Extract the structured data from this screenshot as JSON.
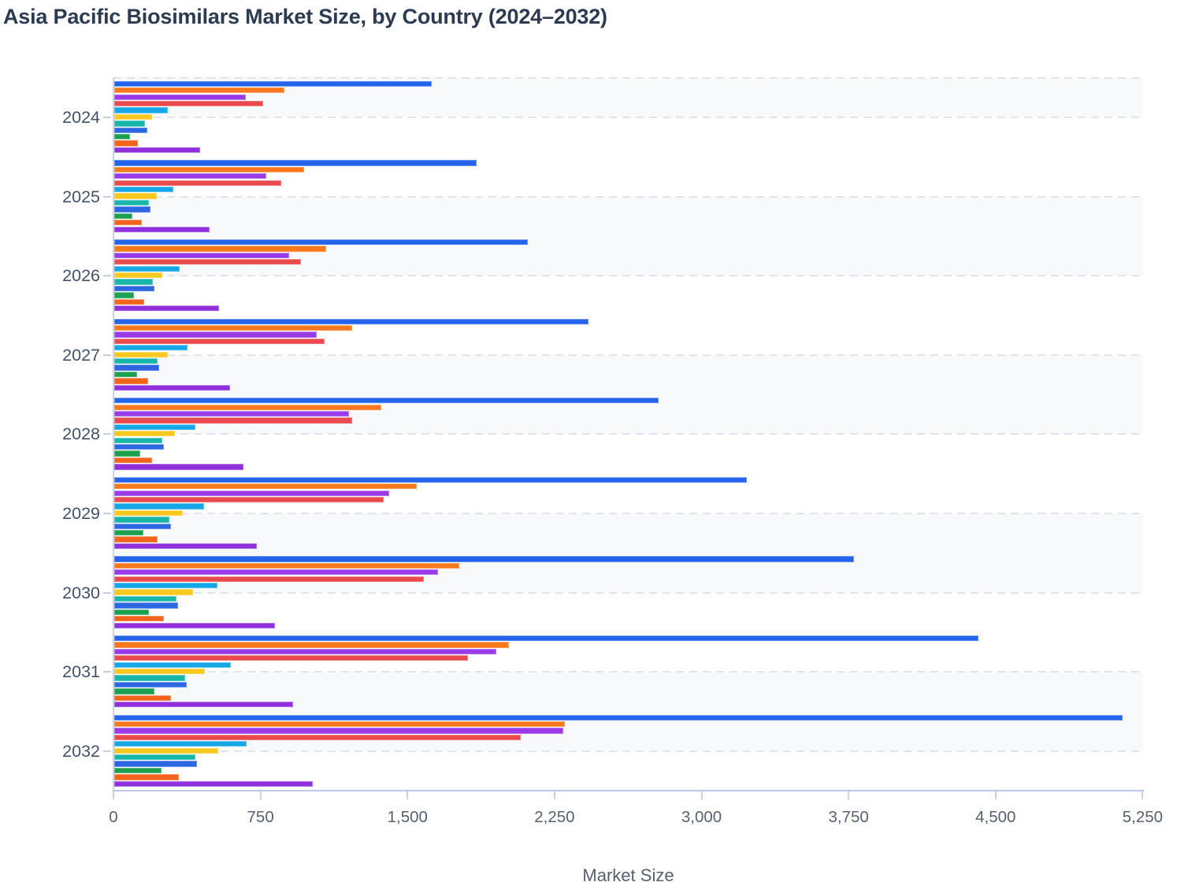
{
  "title": "Asia Pacific Biosimilars Market Size, by Country (2024–2032)",
  "chart_data": {
    "type": "bar",
    "orientation": "horizontal",
    "title": "Asia Pacific Biosimilars Market Size, by Country (2024–2032)",
    "xlabel": "Market Size",
    "ylabel": "",
    "categories": [
      "2024",
      "2025",
      "2026",
      "2027",
      "2028",
      "2029",
      "2030",
      "2031",
      "2032"
    ],
    "xlim": [
      0,
      5250
    ],
    "x_tick_values": [
      0,
      750,
      1500,
      2250,
      3000,
      3750,
      4500,
      5250
    ],
    "x_ticks": [
      "0",
      "750",
      "1,500",
      "2,250",
      "3,000",
      "3,750",
      "4,500",
      "5,250"
    ],
    "grid": "dashed horizontal lines at category centers, alternating light-gray row bands",
    "legend": "none visible",
    "series": [
      {
        "name": "series-01-blue",
        "color": "#2563eb",
        "values": [
          1620,
          1850,
          2110,
          2420,
          2780,
          3230,
          3776,
          4410,
          5146
        ]
      },
      {
        "name": "series-02-orange",
        "color": "#f8791d",
        "values": [
          870,
          969,
          1083,
          1214,
          1363,
          1547,
          1764,
          2017,
          2299
        ]
      },
      {
        "name": "series-03-violet",
        "color": "#9a3be8",
        "values": [
          675,
          776,
          894,
          1034,
          1201,
          1406,
          1653,
          1950,
          2292
        ]
      },
      {
        "name": "series-04-red",
        "color": "#e94a4d",
        "values": [
          763,
          854,
          953,
          1074,
          1214,
          1378,
          1580,
          1808,
          2076
        ]
      },
      {
        "name": "series-05-sky-blue",
        "color": "#16a7e6",
        "values": [
          275,
          304,
          336,
          374,
          414,
          462,
          528,
          596,
          678
        ]
      },
      {
        "name": "series-06-yellow",
        "color": "#f7c81d",
        "values": [
          196,
          219,
          246,
          277,
          311,
          350,
          405,
          464,
          532
        ]
      },
      {
        "name": "series-07-teal",
        "color": "#17b6a9",
        "values": [
          160,
          178,
          199,
          223,
          248,
          284,
          319,
          363,
          414
        ]
      },
      {
        "name": "series-08-medium-blue",
        "color": "#2d66e1",
        "values": [
          169,
          187,
          207,
          230,
          257,
          292,
          328,
          372,
          424
        ]
      },
      {
        "name": "series-09-green",
        "color": "#1c9f4e",
        "values": [
          83,
          95,
          104,
          119,
          134,
          152,
          180,
          208,
          244
        ]
      },
      {
        "name": "series-10-dark-orange",
        "color": "#f2641c",
        "values": [
          123,
          142,
          154,
          176,
          196,
          222,
          256,
          291,
          333
        ]
      },
      {
        "name": "series-11-purple",
        "color": "#9030dc",
        "values": [
          440,
          488,
          537,
          594,
          660,
          731,
          820,
          914,
          1013
        ]
      }
    ]
  },
  "colors": {
    "background": "#ffffff",
    "row_band": "#f8f9fb",
    "gridline": "#e1e4e9",
    "axis_line": "#bcc8e4",
    "title_text": "#2c3a52",
    "tick_text": "#57616f",
    "category_text": "#44516a"
  }
}
